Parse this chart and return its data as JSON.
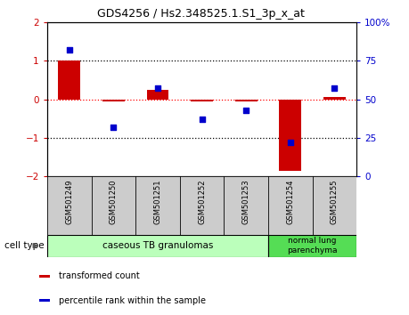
{
  "title": "GDS4256 / Hs2.348525.1.S1_3p_x_at",
  "samples": [
    "GSM501249",
    "GSM501250",
    "GSM501251",
    "GSM501252",
    "GSM501253",
    "GSM501254",
    "GSM501255"
  ],
  "transformed_count": [
    1.0,
    -0.05,
    0.25,
    -0.05,
    -0.05,
    -1.85,
    0.05
  ],
  "percentile_rank": [
    82,
    32,
    57,
    37,
    43,
    22,
    57
  ],
  "ylim_left": [
    -2,
    2
  ],
  "ylim_right": [
    0,
    100
  ],
  "yticks_left": [
    -2,
    -1,
    0,
    1,
    2
  ],
  "yticks_right": [
    0,
    25,
    50,
    75,
    100
  ],
  "ytick_labels_right": [
    "0",
    "25",
    "50",
    "75",
    "100%"
  ],
  "bar_color": "#cc0000",
  "dot_color": "#0000cc",
  "cell_groups": [
    {
      "label": "caseous TB granulomas",
      "n": 5,
      "color": "#bbffbb"
    },
    {
      "label": "normal lung\nparenchyma",
      "n": 2,
      "color": "#55dd55"
    }
  ],
  "legend_items": [
    {
      "color": "#cc0000",
      "label": "transformed count"
    },
    {
      "color": "#0000cc",
      "label": "percentile rank within the sample"
    }
  ],
  "cell_type_label": "cell type",
  "bg_color": "#ffffff",
  "tick_label_color_left": "#cc0000",
  "tick_label_color_right": "#0000cc",
  "zero_line_color": "#ff0000",
  "hline_color": "#000000",
  "spine_color": "#000000",
  "xtick_bg": "#cccccc"
}
